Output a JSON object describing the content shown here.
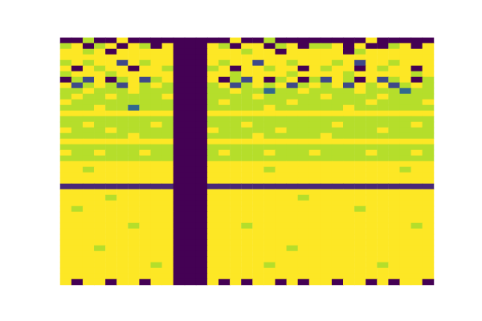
{
  "chart_data": {
    "type": "heatmap",
    "tick_labels": false,
    "color_range": [
      0,
      9
    ],
    "cells": [
      [
        0,
        0,
        8,
        0,
        0,
        9,
        0,
        0,
        0,
        0,
        0,
        0,
        0,
        0,
        0,
        9,
        0,
        0,
        8,
        0,
        0,
        0,
        0,
        0,
        0,
        0,
        0,
        9,
        0,
        0,
        0,
        0,
        0
      ],
      [
        8,
        9,
        0,
        8,
        9,
        0,
        9,
        8,
        0,
        9,
        0,
        0,
        0,
        9,
        8,
        0,
        9,
        9,
        0,
        8,
        9,
        0,
        8,
        8,
        9,
        0,
        9,
        0,
        0,
        8,
        9,
        0,
        9
      ],
      [
        9,
        9,
        8,
        9,
        0,
        9,
        9,
        9,
        9,
        9,
        0,
        0,
        0,
        9,
        9,
        9,
        8,
        9,
        9,
        0,
        9,
        9,
        9,
        9,
        9,
        0,
        8,
        9,
        9,
        9,
        9,
        9,
        9
      ],
      [
        9,
        9,
        9,
        9,
        9,
        9,
        9,
        9,
        9,
        9,
        0,
        0,
        0,
        9,
        9,
        9,
        9,
        9,
        9,
        9,
        9,
        9,
        9,
        9,
        9,
        9,
        9,
        9,
        9,
        9,
        9,
        9,
        9
      ],
      [
        8,
        9,
        8,
        9,
        9,
        2,
        9,
        8,
        9,
        9,
        0,
        0,
        0,
        9,
        8,
        9,
        9,
        2,
        9,
        9,
        8,
        9,
        9,
        9,
        8,
        9,
        2,
        9,
        9,
        8,
        9,
        9,
        9
      ],
      [
        9,
        0,
        9,
        8,
        9,
        9,
        0,
        9,
        9,
        8,
        0,
        0,
        0,
        8,
        9,
        0,
        9,
        9,
        8,
        9,
        9,
        0,
        9,
        8,
        9,
        9,
        0,
        9,
        8,
        9,
        9,
        0,
        9
      ],
      [
        8,
        9,
        9,
        9,
        8,
        9,
        9,
        9,
        9,
        9,
        0,
        0,
        0,
        9,
        9,
        8,
        9,
        9,
        9,
        9,
        8,
        9,
        9,
        9,
        9,
        8,
        9,
        9,
        9,
        9,
        9,
        8,
        9
      ],
      [
        0,
        8,
        2,
        9,
        0,
        8,
        9,
        2,
        8,
        9,
        0,
        0,
        0,
        9,
        0,
        8,
        2,
        9,
        0,
        8,
        9,
        0,
        8,
        2,
        9,
        8,
        0,
        9,
        2,
        8,
        9,
        0,
        8
      ],
      [
        9,
        2,
        8,
        9,
        8,
        2,
        9,
        8,
        9,
        8,
        0,
        0,
        0,
        8,
        9,
        2,
        8,
        9,
        8,
        9,
        2,
        8,
        9,
        8,
        9,
        2,
        9,
        8,
        9,
        2,
        8,
        9,
        8
      ],
      [
        8,
        8,
        9,
        8,
        8,
        8,
        9,
        8,
        8,
        8,
        0,
        0,
        0,
        8,
        8,
        9,
        8,
        8,
        3,
        8,
        8,
        9,
        8,
        8,
        8,
        8,
        9,
        8,
        8,
        8,
        3,
        8,
        8
      ],
      [
        8,
        9,
        8,
        8,
        9,
        8,
        8,
        8,
        8,
        9,
        0,
        0,
        0,
        8,
        8,
        8,
        8,
        9,
        8,
        8,
        8,
        8,
        8,
        9,
        8,
        8,
        8,
        8,
        9,
        8,
        8,
        8,
        8
      ],
      [
        9,
        8,
        8,
        8,
        8,
        8,
        8,
        8,
        8,
        8,
        0,
        0,
        0,
        8,
        9,
        8,
        8,
        8,
        8,
        8,
        9,
        8,
        8,
        8,
        8,
        8,
        8,
        9,
        8,
        8,
        8,
        8,
        9
      ],
      [
        8,
        8,
        8,
        9,
        8,
        8,
        3,
        8,
        8,
        8,
        0,
        0,
        0,
        8,
        8,
        8,
        8,
        8,
        9,
        8,
        8,
        8,
        8,
        8,
        8,
        9,
        8,
        8,
        8,
        8,
        8,
        8,
        8
      ],
      [
        9,
        9,
        9,
        9,
        9,
        9,
        9,
        9,
        9,
        9,
        0,
        0,
        0,
        9,
        9,
        9,
        9,
        9,
        9,
        9,
        9,
        9,
        9,
        9,
        9,
        9,
        9,
        9,
        9,
        9,
        9,
        9,
        9
      ],
      [
        8,
        8,
        8,
        8,
        8,
        8,
        8,
        8,
        8,
        8,
        0,
        0,
        0,
        8,
        8,
        8,
        8,
        8,
        8,
        8,
        8,
        8,
        8,
        8,
        8,
        8,
        8,
        8,
        8,
        8,
        8,
        8,
        8
      ],
      [
        8,
        8,
        9,
        8,
        8,
        8,
        8,
        8,
        9,
        8,
        0,
        0,
        0,
        8,
        8,
        8,
        9,
        8,
        8,
        8,
        8,
        8,
        8,
        8,
        9,
        8,
        8,
        8,
        8,
        8,
        8,
        9,
        8
      ],
      [
        9,
        8,
        8,
        8,
        9,
        8,
        8,
        8,
        8,
        8,
        0,
        0,
        0,
        9,
        8,
        8,
        8,
        8,
        8,
        9,
        8,
        8,
        8,
        8,
        8,
        8,
        8,
        8,
        9,
        8,
        8,
        8,
        8
      ],
      [
        8,
        8,
        8,
        8,
        8,
        8,
        9,
        8,
        8,
        8,
        0,
        0,
        0,
        8,
        8,
        8,
        8,
        9,
        8,
        8,
        8,
        8,
        8,
        9,
        8,
        8,
        8,
        8,
        8,
        8,
        8,
        8,
        8
      ],
      [
        9,
        9,
        9,
        9,
        9,
        9,
        9,
        9,
        9,
        9,
        0,
        0,
        0,
        9,
        9,
        9,
        9,
        9,
        9,
        9,
        9,
        9,
        9,
        9,
        9,
        9,
        9,
        9,
        9,
        9,
        9,
        9,
        9
      ],
      [
        8,
        8,
        8,
        8,
        8,
        8,
        8,
        8,
        8,
        8,
        0,
        0,
        0,
        8,
        8,
        8,
        8,
        8,
        8,
        8,
        8,
        8,
        8,
        8,
        8,
        8,
        8,
        8,
        8,
        8,
        8,
        8,
        8
      ],
      [
        9,
        8,
        8,
        9,
        8,
        8,
        8,
        9,
        8,
        8,
        0,
        0,
        0,
        8,
        9,
        8,
        8,
        8,
        9,
        8,
        8,
        8,
        9,
        8,
        8,
        8,
        8,
        9,
        8,
        8,
        8,
        9,
        8
      ],
      [
        8,
        8,
        8,
        8,
        8,
        8,
        8,
        8,
        8,
        8,
        0,
        0,
        0,
        8,
        8,
        8,
        8,
        8,
        8,
        8,
        8,
        8,
        8,
        8,
        8,
        8,
        8,
        8,
        8,
        8,
        8,
        8,
        8
      ],
      [
        9,
        9,
        9,
        9,
        9,
        9,
        9,
        9,
        9,
        9,
        0,
        0,
        0,
        9,
        9,
        9,
        9,
        9,
        9,
        9,
        9,
        9,
        9,
        9,
        9,
        9,
        9,
        9,
        9,
        9,
        9,
        9,
        9
      ],
      [
        9,
        9,
        8,
        9,
        9,
        9,
        9,
        9,
        9,
        9,
        0,
        0,
        0,
        9,
        9,
        9,
        9,
        9,
        8,
        9,
        9,
        9,
        9,
        9,
        9,
        9,
        9,
        9,
        9,
        9,
        8,
        9,
        9
      ],
      [
        9,
        9,
        9,
        9,
        9,
        9,
        9,
        9,
        9,
        9,
        0,
        0,
        0,
        9,
        9,
        9,
        9,
        9,
        9,
        9,
        9,
        9,
        9,
        9,
        9,
        9,
        9,
        9,
        9,
        9,
        9,
        9,
        9
      ],
      [
        9,
        9,
        9,
        9,
        9,
        9,
        9,
        9,
        9,
        9,
        0,
        0,
        0,
        9,
        9,
        9,
        9,
        9,
        9,
        9,
        9,
        9,
        9,
        9,
        9,
        9,
        9,
        9,
        9,
        9,
        9,
        9,
        9
      ],
      [
        1,
        1,
        1,
        1,
        1,
        1,
        1,
        1,
        1,
        1,
        0,
        0,
        0,
        1,
        1,
        1,
        1,
        1,
        1,
        1,
        1,
        1,
        1,
        1,
        1,
        1,
        1,
        1,
        1,
        1,
        1,
        1,
        1
      ],
      [
        9,
        9,
        9,
        9,
        9,
        9,
        9,
        9,
        9,
        9,
        0,
        0,
        0,
        9,
        9,
        9,
        9,
        9,
        9,
        9,
        9,
        9,
        9,
        9,
        9,
        9,
        9,
        9,
        9,
        9,
        9,
        9,
        9
      ],
      [
        9,
        9,
        9,
        9,
        8,
        9,
        9,
        9,
        9,
        9,
        0,
        0,
        0,
        9,
        9,
        9,
        9,
        9,
        9,
        9,
        9,
        8,
        9,
        9,
        9,
        9,
        9,
        9,
        9,
        9,
        9,
        9,
        9
      ],
      [
        9,
        9,
        9,
        9,
        9,
        9,
        9,
        9,
        9,
        9,
        0,
        0,
        0,
        9,
        9,
        9,
        9,
        9,
        9,
        9,
        9,
        9,
        9,
        9,
        9,
        9,
        9,
        9,
        9,
        9,
        9,
        9,
        9
      ],
      [
        9,
        8,
        9,
        9,
        9,
        9,
        9,
        9,
        9,
        9,
        0,
        0,
        0,
        9,
        9,
        9,
        9,
        9,
        9,
        9,
        9,
        9,
        9,
        9,
        9,
        9,
        8,
        9,
        9,
        9,
        9,
        9,
        9
      ],
      [
        9,
        9,
        9,
        9,
        9,
        9,
        9,
        9,
        9,
        9,
        0,
        0,
        0,
        9,
        9,
        9,
        9,
        9,
        9,
        9,
        9,
        9,
        9,
        9,
        9,
        9,
        9,
        9,
        9,
        9,
        9,
        9,
        9
      ],
      [
        9,
        9,
        9,
        9,
        9,
        9,
        9,
        9,
        9,
        9,
        0,
        0,
        0,
        9,
        9,
        9,
        9,
        9,
        9,
        9,
        9,
        9,
        9,
        9,
        9,
        9,
        9,
        9,
        9,
        9,
        9,
        9,
        9
      ],
      [
        9,
        9,
        9,
        9,
        9,
        9,
        8,
        9,
        9,
        9,
        0,
        0,
        0,
        9,
        9,
        9,
        8,
        9,
        9,
        9,
        9,
        9,
        9,
        9,
        9,
        9,
        9,
        9,
        9,
        9,
        9,
        8,
        9
      ],
      [
        9,
        9,
        9,
        9,
        9,
        9,
        9,
        9,
        9,
        9,
        0,
        0,
        0,
        9,
        9,
        9,
        9,
        9,
        9,
        9,
        9,
        9,
        9,
        9,
        9,
        9,
        9,
        9,
        9,
        9,
        9,
        9,
        9
      ],
      [
        9,
        9,
        9,
        9,
        9,
        9,
        9,
        9,
        9,
        9,
        0,
        0,
        0,
        9,
        9,
        9,
        9,
        9,
        9,
        9,
        9,
        9,
        9,
        9,
        9,
        9,
        9,
        9,
        9,
        9,
        9,
        9,
        9
      ],
      [
        9,
        9,
        9,
        9,
        9,
        9,
        9,
        9,
        9,
        9,
        0,
        0,
        0,
        9,
        9,
        9,
        9,
        9,
        9,
        9,
        9,
        9,
        9,
        9,
        9,
        9,
        9,
        9,
        9,
        9,
        9,
        9,
        9
      ],
      [
        9,
        9,
        9,
        8,
        9,
        9,
        9,
        9,
        9,
        9,
        0,
        0,
        0,
        9,
        9,
        9,
        9,
        9,
        9,
        9,
        8,
        9,
        9,
        9,
        9,
        9,
        9,
        9,
        9,
        9,
        9,
        9,
        9
      ],
      [
        9,
        9,
        9,
        9,
        9,
        9,
        9,
        9,
        9,
        9,
        0,
        0,
        0,
        9,
        9,
        9,
        9,
        9,
        9,
        9,
        9,
        9,
        9,
        9,
        9,
        9,
        9,
        9,
        9,
        9,
        9,
        9,
        9
      ],
      [
        9,
        9,
        9,
        9,
        9,
        9,
        9,
        9,
        9,
        9,
        0,
        0,
        0,
        9,
        9,
        9,
        9,
        9,
        9,
        9,
        9,
        9,
        9,
        9,
        9,
        9,
        9,
        9,
        9,
        9,
        9,
        9,
        9
      ],
      [
        9,
        9,
        9,
        9,
        9,
        9,
        9,
        9,
        8,
        9,
        0,
        0,
        0,
        9,
        9,
        9,
        9,
        9,
        8,
        9,
        9,
        9,
        9,
        9,
        9,
        9,
        9,
        9,
        8,
        9,
        9,
        9,
        9
      ],
      [
        9,
        9,
        9,
        9,
        9,
        9,
        9,
        9,
        9,
        9,
        0,
        0,
        0,
        9,
        9,
        9,
        9,
        9,
        9,
        9,
        9,
        9,
        9,
        9,
        9,
        9,
        9,
        9,
        9,
        9,
        9,
        9,
        9
      ],
      [
        9,
        9,
        9,
        9,
        9,
        9,
        9,
        9,
        9,
        9,
        0,
        0,
        0,
        9,
        9,
        9,
        9,
        9,
        9,
        9,
        9,
        9,
        9,
        9,
        9,
        9,
        9,
        9,
        9,
        9,
        9,
        9,
        9
      ],
      [
        9,
        0,
        9,
        9,
        0,
        9,
        9,
        0,
        9,
        9,
        0,
        0,
        0,
        9,
        0,
        9,
        0,
        9,
        9,
        0,
        9,
        0,
        9,
        9,
        0,
        9,
        9,
        0,
        9,
        0,
        9,
        9,
        0
      ]
    ]
  }
}
